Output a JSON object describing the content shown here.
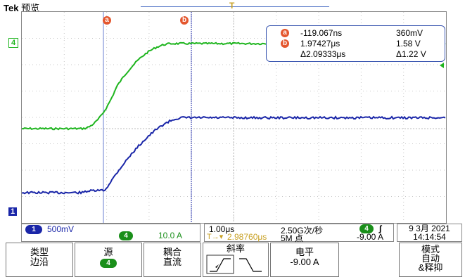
{
  "header": {
    "brand": "Tek",
    "mode": "预览",
    "trigger_marker": "T"
  },
  "cursors": {
    "a_label": "a",
    "b_label": "b"
  },
  "channels": {
    "ch4_label": "4",
    "ch1_label": "1"
  },
  "readout": {
    "a_time": "-119.067ns",
    "a_value": "360mV",
    "b_time": "1.97427μs",
    "b_value": "1.58 V",
    "delta_time": "Δ2.09333μs",
    "delta_value": "Δ1.22 V"
  },
  "status": {
    "ch1_badge": "1",
    "ch1_scale": "500mV",
    "ch4_badge": "4",
    "ch4_scale": "10.0 A",
    "timebase": "1.00μs",
    "sample_rate": "2.50G次/秒",
    "trigger_pos": "2.98760μs",
    "record_length": "5M 点",
    "trig_badge": "4",
    "trig_slope": "∫",
    "trig_level": "-9.00 A",
    "date": "9 3月  2021",
    "time": "14:14:54"
  },
  "menu": {
    "type_l1": "类型",
    "type_l2": "边沿",
    "source_l1": "源",
    "source_badge": "4",
    "coupling_l1": "耦合",
    "coupling_l2": "直流",
    "slope_title": "斜率",
    "level_l1": "电平",
    "level_l2": "-9.00 A",
    "mode_l1": "模式",
    "mode_l2": "自动",
    "mode_l3": "&释抑"
  },
  "colors": {
    "ch4": "#1fb51f",
    "ch1": "#1a26a8",
    "cursor": "#e4572e",
    "trigger": "#c9a227"
  }
}
